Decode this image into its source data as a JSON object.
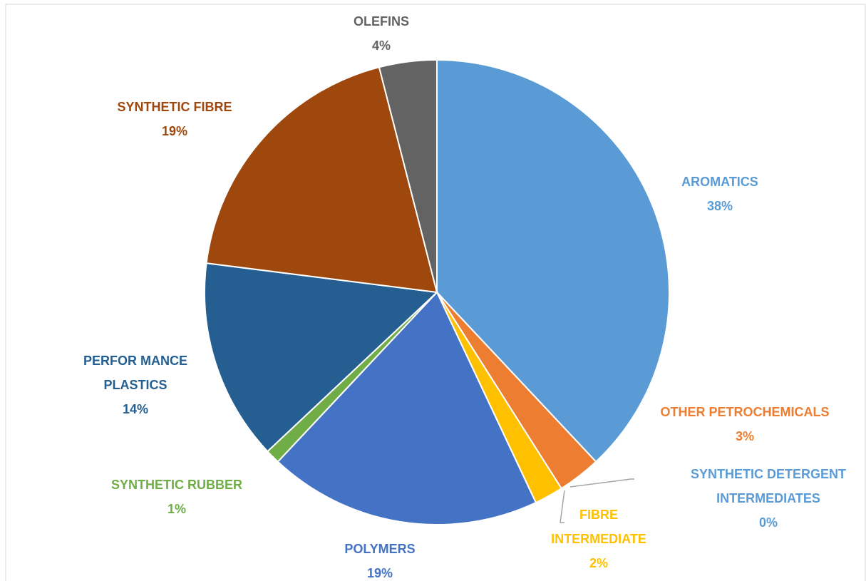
{
  "chart_data": {
    "type": "pie",
    "categories": [
      "AROMATICS",
      "OTHER PETROCHEMICALS",
      "SYNTHETIC DETERGENT INTERMEDIATES",
      "FIBRE INTERMEDIATE",
      "POLYMERS",
      "SYNTHETIC RUBBER",
      "PERFOR MANCE PLASTICS",
      "SYNTHETIC FIBRE",
      "OLEFINS"
    ],
    "values": [
      38,
      3,
      0,
      2,
      19,
      1,
      14,
      19,
      4
    ],
    "value_labels": [
      "38%",
      "3%",
      "0%",
      "2%",
      "19%",
      "1%",
      "14%",
      "19%",
      "4%"
    ],
    "colors": [
      "#5b9bd5",
      "#ed7d31",
      "#5b9bd5",
      "#ffc000",
      "#4472c4",
      "#70ad47",
      "#255e91",
      "#9e480e",
      "#636363"
    ]
  }
}
